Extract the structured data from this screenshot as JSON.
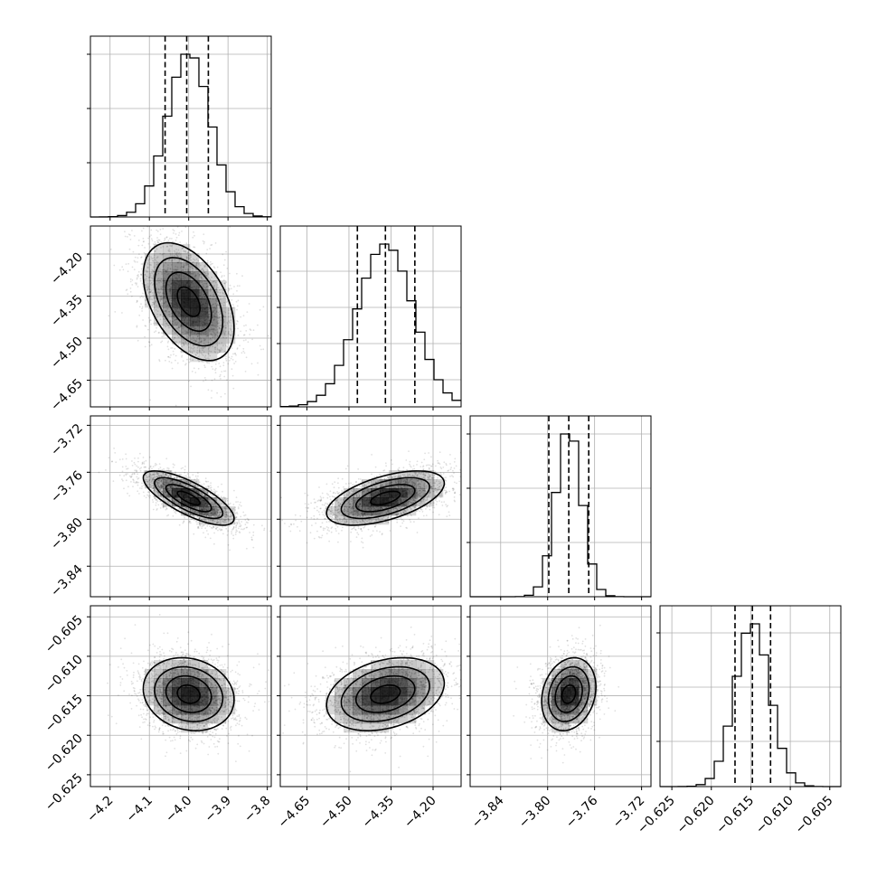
{
  "chart_data": {
    "type": "corner",
    "parameters": [
      {
        "range": [
          -4.25,
          -3.79
        ],
        "ticks": [
          "−4.2",
          "−4.1",
          "−4.0",
          "−3.9",
          "−3.8"
        ],
        "tick_values": [
          -4.2,
          -4.1,
          -4.0,
          -3.9,
          -3.8
        ],
        "quantiles": [
          -4.06,
          -4.005,
          -3.95
        ],
        "peak": -4.0,
        "width": 0.055,
        "ytick_frac": [
          0.3,
          0.6,
          0.9
        ]
      },
      {
        "range": [
          -4.745,
          -4.1
        ],
        "ticks": [
          "−4.65",
          "−4.50",
          "−4.35",
          "−4.20"
        ],
        "tick_values": [
          -4.65,
          -4.5,
          -4.35,
          -4.2
        ],
        "quantiles": [
          -4.47,
          -4.37,
          -4.265
        ],
        "peak": -4.37,
        "width": 0.1,
        "ytick_frac": [
          0.15,
          0.35,
          0.55,
          0.75
        ]
      },
      {
        "range": [
          -3.866,
          -3.712
        ],
        "ticks": [
          "−3.84",
          "−3.80",
          "−3.76",
          "−3.72"
        ],
        "tick_values": [
          -3.84,
          -3.8,
          -3.76,
          -3.72
        ],
        "quantiles": [
          -3.799,
          -3.782,
          -3.765
        ],
        "peak": -3.782,
        "width": 0.011,
        "ytick_frac": [
          0.3,
          0.6,
          0.9
        ]
      },
      {
        "range": [
          -0.6265,
          -0.6036
        ],
        "ticks": [
          "−0.625",
          "−0.620",
          "−0.615",
          "−0.610",
          "−0.605"
        ],
        "tick_values": [
          -0.625,
          -0.62,
          -0.615,
          -0.61,
          -0.605
        ],
        "quantiles": [
          -0.617,
          -0.6148,
          -0.6125
        ],
        "peak": -0.6148,
        "width": 0.0022,
        "ytick_frac": [
          0.25,
          0.55,
          0.85
        ]
      }
    ],
    "pairs": [
      {
        "row": 1,
        "col": 0,
        "rho": -0.45
      },
      {
        "row": 2,
        "col": 0,
        "rho": -0.75
      },
      {
        "row": 2,
        "col": 1,
        "rho": 0.55
      },
      {
        "row": 3,
        "col": 0,
        "rho": -0.15
      },
      {
        "row": 3,
        "col": 1,
        "rho": 0.3
      },
      {
        "row": 3,
        "col": 2,
        "rho": 0.2
      }
    ],
    "hist_bins": 20,
    "contour_levels_sigma": [
      0.5,
      1.0,
      1.5,
      2.0
    ],
    "grid": true,
    "colors": {
      "line": "#000000",
      "grid": "#b0b0b0",
      "density": "#000000"
    }
  }
}
